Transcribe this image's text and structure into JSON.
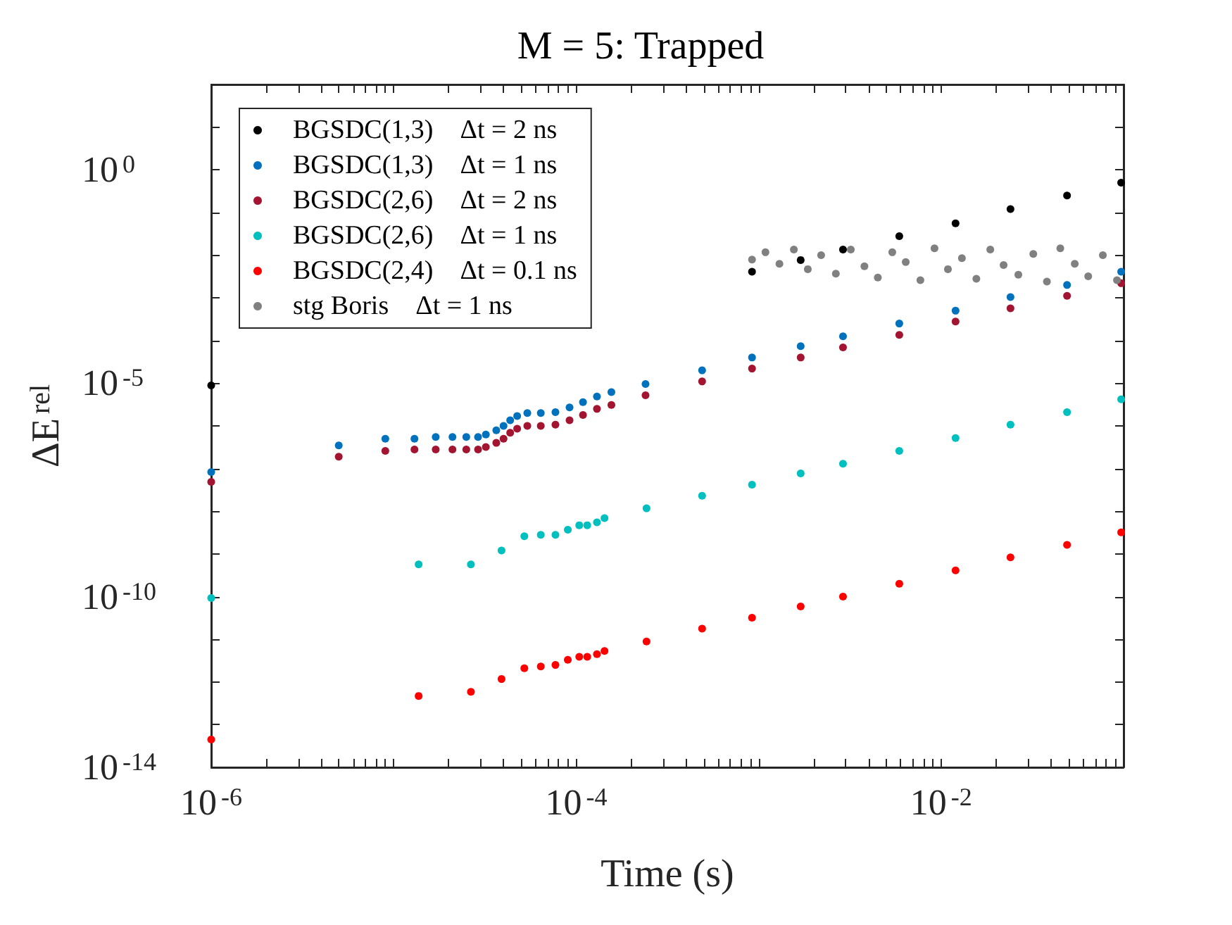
{
  "chart_data": {
    "type": "scatter",
    "title": "M = 5: Trapped",
    "xlabel": "Time (s)",
    "ylabel": "ΔE$^{rel}$",
    "log": "xy",
    "grid": false,
    "legend": "top left",
    "marker": "circle",
    "xlim": [
      1e-06,
      0.1
    ],
    "ylim": [
      1e-14,
      100
    ],
    "xticks": [
      {
        "value": 1e-06,
        "label": "10$^{-6}$"
      },
      {
        "value": 2e-06,
        "label": null
      },
      {
        "value": 3e-06,
        "label": null
      },
      {
        "value": 4e-06,
        "label": null
      },
      {
        "value": 5e-06,
        "label": null
      },
      {
        "value": 6e-06,
        "label": null
      },
      {
        "value": 7e-06,
        "label": null
      },
      {
        "value": 8e-06,
        "label": null
      },
      {
        "value": 9e-06,
        "label": null
      },
      {
        "value": 1e-05,
        "label": null
      },
      {
        "value": 2e-05,
        "label": null
      },
      {
        "value": 3e-05,
        "label": null
      },
      {
        "value": 4e-05,
        "label": null
      },
      {
        "value": 5e-05,
        "label": null
      },
      {
        "value": 6e-05,
        "label": null
      },
      {
        "value": 7e-05,
        "label": null
      },
      {
        "value": 8e-05,
        "label": null
      },
      {
        "value": 9e-05,
        "label": null
      },
      {
        "value": 0.0001,
        "label": "10$^{-4}$"
      },
      {
        "value": 0.0002,
        "label": null
      },
      {
        "value": 0.0003,
        "label": null
      },
      {
        "value": 0.0004,
        "label": null
      },
      {
        "value": 0.0005,
        "label": null
      },
      {
        "value": 0.0006,
        "label": null
      },
      {
        "value": 0.0007,
        "label": null
      },
      {
        "value": 0.0008,
        "label": null
      },
      {
        "value": 0.0009,
        "label": null
      },
      {
        "value": 0.001,
        "label": null
      },
      {
        "value": 0.002,
        "label": null
      },
      {
        "value": 0.003,
        "label": null
      },
      {
        "value": 0.004,
        "label": null
      },
      {
        "value": 0.005,
        "label": null
      },
      {
        "value": 0.006,
        "label": null
      },
      {
        "value": 0.007,
        "label": null
      },
      {
        "value": 0.008,
        "label": null
      },
      {
        "value": 0.009,
        "label": null
      },
      {
        "value": 0.01,
        "label": "10$^{-2}$"
      },
      {
        "value": 0.02,
        "label": null
      },
      {
        "value": 0.03,
        "label": null
      },
      {
        "value": 0.04,
        "label": null
      },
      {
        "value": 0.05,
        "label": null
      },
      {
        "value": 0.06,
        "label": null
      },
      {
        "value": 0.07,
        "label": null
      },
      {
        "value": 0.08,
        "label": null
      },
      {
        "value": 0.09,
        "label": null
      },
      {
        "value": 0.1,
        "label": null
      }
    ],
    "yticks": [
      {
        "value": 1e-14,
        "label": "10$^{-14}$"
      },
      {
        "value": 1e-13,
        "label": null
      },
      {
        "value": 1e-12,
        "label": null
      },
      {
        "value": 1e-11,
        "label": null
      },
      {
        "value": 1e-10,
        "label": "10$^{-10}$"
      },
      {
        "value": 1e-09,
        "label": null
      },
      {
        "value": 1e-08,
        "label": null
      },
      {
        "value": 1e-07,
        "label": null
      },
      {
        "value": 1e-06,
        "label": null
      },
      {
        "value": 1e-05,
        "label": "10$^{-5}$"
      },
      {
        "value": 0.0001,
        "label": null
      },
      {
        "value": 0.001,
        "label": null
      },
      {
        "value": 0.01,
        "label": null
      },
      {
        "value": 0.1,
        "label": null
      },
      {
        "value": 1,
        "label": "10$^{0}$"
      },
      {
        "value": 10,
        "label": null
      },
      {
        "value": 100,
        "label": null
      }
    ],
    "series": [
      {
        "name": "BGSDC(1,3)    Δt = 2 ns",
        "color": "#000000",
        "x": [
          1e-06,
          0.00092,
          0.0017,
          0.0029,
          0.0059,
          0.012,
          0.024,
          0.049,
          0.097
        ],
        "values": [
          8.9e-06,
          0.0041,
          0.0077,
          0.0135,
          0.028,
          0.056,
          0.12,
          0.25,
          0.5
        ]
      },
      {
        "name": "BGSDC(1,3)    Δt = 1 ns",
        "color": "#0072bd",
        "x": [
          1e-06,
          5e-06,
          9e-06,
          1.3e-05,
          1.7e-05,
          2.1e-05,
          2.5e-05,
          2.9e-05,
          3.2e-05,
          3.65e-05,
          4e-05,
          4.35e-05,
          4.75e-05,
          5.4e-05,
          6.4e-05,
          7.7e-05,
          9.2e-05,
          0.000109,
          0.00013,
          0.000156,
          0.00024,
          0.00049,
          0.00092,
          0.0017,
          0.0029,
          0.0059,
          0.012,
          0.024,
          0.049,
          0.097
        ],
        "values": [
          8.3e-08,
          3.5e-07,
          5e-07,
          5e-07,
          5.5e-07,
          5.5e-07,
          5.5e-07,
          5.5e-07,
          6.3e-07,
          7.9e-07,
          1e-06,
          1.35e-06,
          1.7e-06,
          2e-06,
          2e-06,
          2.1e-06,
          2.7e-06,
          3.6e-06,
          4.9e-06,
          6.2e-06,
          9.6e-06,
          2e-05,
          4e-05,
          7.4e-05,
          0.000126,
          0.00025,
          0.0005,
          0.00104,
          0.002,
          0.0041
        ]
      },
      {
        "name": "BGSDC(2,6)    Δt = 2 ns",
        "color": "#a2142f",
        "x": [
          1e-06,
          5e-06,
          9e-06,
          1.3e-05,
          1.7e-05,
          2.1e-05,
          2.5e-05,
          2.9e-05,
          3.2e-05,
          3.65e-05,
          4e-05,
          4.35e-05,
          4.75e-05,
          5.4e-05,
          6.4e-05,
          7.7e-05,
          9.2e-05,
          0.000109,
          0.00013,
          0.000156,
          0.00024,
          0.00049,
          0.00092,
          0.0017,
          0.0029,
          0.0059,
          0.012,
          0.024,
          0.049,
          0.097
        ],
        "values": [
          4.9e-08,
          1.9e-07,
          2.6e-07,
          2.8e-07,
          2.8e-07,
          2.8e-07,
          2.8e-07,
          2.8e-07,
          3.2e-07,
          4e-07,
          5e-07,
          6.9e-07,
          8.6e-07,
          1e-06,
          1e-06,
          1.07e-06,
          1.35e-06,
          1.8e-06,
          2.5e-06,
          3.1e-06,
          5.2e-06,
          1.1e-05,
          2.2e-05,
          4e-05,
          6.9e-05,
          0.000135,
          0.00028,
          0.00057,
          0.00112,
          0.0022
        ]
      },
      {
        "name": "BGSDC(2,6)    Δt = 1 ns",
        "color": "#00bfbf",
        "x": [
          1e-06,
          1.37e-05,
          2.65e-05,
          3.9e-05,
          5.2e-05,
          6.4e-05,
          7.7e-05,
          9e-05,
          0.000104,
          0.000115,
          0.00013,
          0.000143,
          0.000243,
          0.00049,
          0.00092,
          0.0017,
          0.0029,
          0.0059,
          0.012,
          0.024,
          0.049,
          0.097
        ],
        "values": [
          9.3e-11,
          5.7e-10,
          5.7e-10,
          1.2e-09,
          2.6e-09,
          2.8e-09,
          2.8e-09,
          3.7e-09,
          4.7e-09,
          4.7e-09,
          5.5e-09,
          6.9e-09,
          1.17e-08,
          2.3e-08,
          4.2e-08,
          7.7e-08,
          1.3e-07,
          2.6e-07,
          5.2e-07,
          1.07e-06,
          2.1e-06,
          4.2e-06
        ]
      },
      {
        "name": "BGSDC(2,4)    Δt = 0.1 ns",
        "color": "#ff0000",
        "x": [
          1e-06,
          1.37e-05,
          2.65e-05,
          3.9e-05,
          5.2e-05,
          6.4e-05,
          7.7e-05,
          9e-05,
          0.000104,
          0.000115,
          0.00013,
          0.000143,
          0.000243,
          0.00049,
          0.00092,
          0.0017,
          0.0029,
          0.0059,
          0.012,
          0.024,
          0.049,
          0.097
        ],
        "values": [
          4.5e-14,
          4.7e-13,
          5.9e-13,
          1.17e-12,
          2.1e-12,
          2.3e-12,
          2.5e-12,
          3.3e-12,
          3.9e-12,
          3.9e-12,
          4.5e-12,
          5.3e-12,
          8.9e-12,
          1.77e-11,
          3.2e-11,
          5.9e-11,
          1e-10,
          2e-10,
          4.1e-10,
          8.3e-10,
          1.63e-09,
          3.2e-09
        ]
      },
      {
        "name": "stg Boris    Δt = 1 ns",
        "color": "#808080",
        "x": [
          0.00092,
          0.00109,
          0.0013,
          0.00156,
          0.00186,
          0.0022,
          0.00265,
          0.0032,
          0.0038,
          0.0045,
          0.0054,
          0.0064,
          0.0077,
          0.0092,
          0.0109,
          0.013,
          0.0156,
          0.0186,
          0.022,
          0.0265,
          0.032,
          0.038,
          0.045,
          0.054,
          0.064,
          0.077,
          0.092
        ],
        "values": [
          0.0079,
          0.0117,
          0.0063,
          0.0135,
          0.0047,
          0.01,
          0.0037,
          0.0135,
          0.0055,
          0.003,
          0.0117,
          0.0069,
          0.0026,
          0.0145,
          0.0047,
          0.0085,
          0.0028,
          0.0135,
          0.0059,
          0.0035,
          0.0107,
          0.0024,
          0.0145,
          0.0063,
          0.0032,
          0.01,
          0.0026
        ]
      }
    ]
  }
}
